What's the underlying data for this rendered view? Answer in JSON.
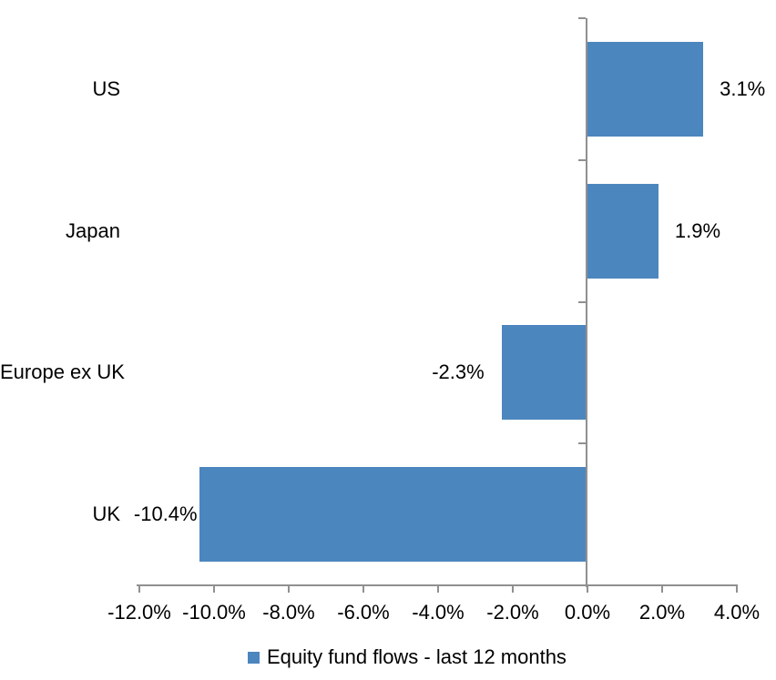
{
  "chart_data": {
    "type": "bar",
    "orientation": "horizontal",
    "categories": [
      "US",
      "Japan",
      "Europe ex UK",
      "UK"
    ],
    "values": [
      3.1,
      1.9,
      -2.3,
      -10.4
    ],
    "data_labels": [
      "3.1%",
      "1.9%",
      "-2.3%",
      "-10.4%"
    ],
    "x_axis": {
      "min": -12,
      "max": 4,
      "tick_step": 2,
      "tick_labels": [
        "-12.0%",
        "-10.0%",
        "-8.0%",
        "-6.0%",
        "-4.0%",
        "-2.0%",
        "0.0%",
        "2.0%",
        "4.0%"
      ]
    },
    "grid": false,
    "legend": {
      "position": "bottom",
      "label": "Equity fund flows - last 12 months"
    },
    "colors": {
      "bar": "#4C86BE",
      "axis": "#909090",
      "text": "#000000",
      "background": "#ffffff"
    }
  }
}
